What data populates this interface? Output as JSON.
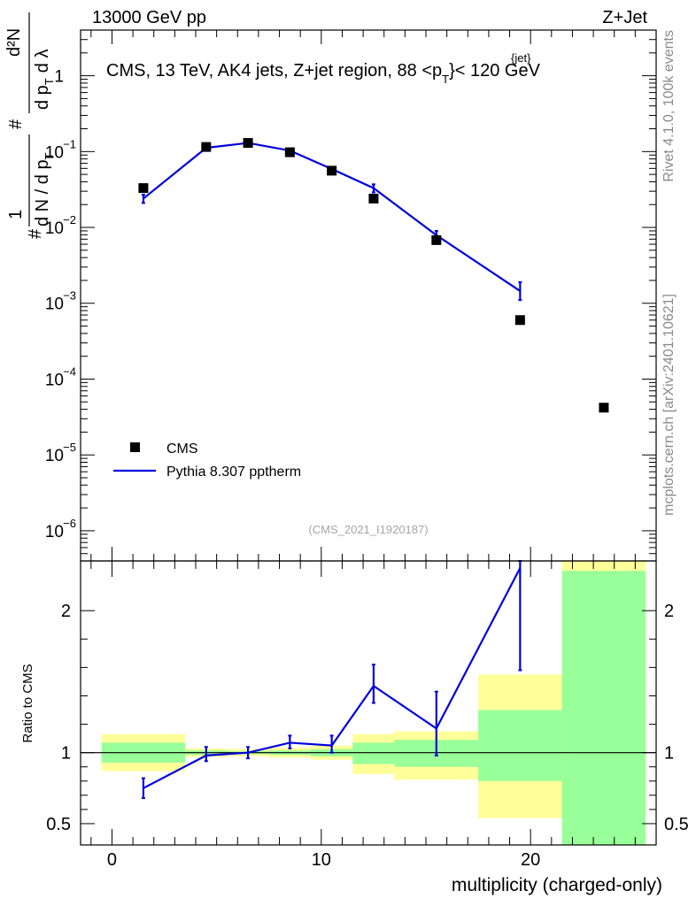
{
  "header": {
    "left": "13000 GeV pp",
    "right": "Z+Jet"
  },
  "side_labels": {
    "top": "Rivet 4.1.0,  100k events",
    "bottom": "mcplots.cern.ch [arXiv:2401.10621]"
  },
  "chart_data": [
    {
      "type": "line",
      "panel": "main",
      "title": "CMS, 13 TeV, AK4 jets, Z+jet region, 88 <p_T^{jet}< 120 GeV",
      "title_parts": {
        "prefix": "CMS, 13 TeV, AK4 jets, Z+jet region, 88 <p",
        "sup": "{jet}",
        "sub": "T",
        "suffix": "}< 120 GeV"
      },
      "ylabel": "1 / (dN/dpT) · d²N/(dpT dλ)",
      "ylabel_parts": {
        "hash": "#",
        "one": "1",
        "dN": "d N / d p",
        "T": "T",
        "d2N": "d²N",
        "dpdl": "d p",
        "lambda": "d λ"
      },
      "yscale": "log",
      "ylim": [
        4e-07,
        4
      ],
      "xlim": [
        -1.5,
        26
      ],
      "yticks": [
        {
          "value": 1,
          "base": "1",
          "exp": ""
        },
        {
          "value": 0.1,
          "base": "10",
          "exp": "−1"
        },
        {
          "value": 0.01,
          "base": "10",
          "exp": "−2"
        },
        {
          "value": 0.001,
          "base": "10",
          "exp": "−3"
        },
        {
          "value": 0.0001,
          "base": "10",
          "exp": "−4"
        },
        {
          "value": 1e-05,
          "base": "10",
          "exp": "−5"
        },
        {
          "value": 1e-06,
          "base": "10",
          "exp": "−6"
        }
      ],
      "series": [
        {
          "name": "CMS",
          "style": "markers",
          "color": "#000000",
          "x": [
            1.5,
            4.5,
            6.5,
            8.5,
            10.5,
            12.5,
            15.5,
            19.5,
            23.5
          ],
          "values": [
            0.033,
            0.115,
            0.13,
            0.098,
            0.056,
            0.024,
            0.0068,
            0.0006,
            4.2e-05
          ]
        },
        {
          "name": "Pythia 8.307 pptherm",
          "style": "line",
          "color": "#0000dd",
          "x": [
            1.5,
            4.5,
            6.5,
            8.5,
            10.5,
            12.5,
            15.5,
            19.5
          ],
          "values": [
            0.024,
            0.112,
            0.13,
            0.103,
            0.059,
            0.033,
            0.0079,
            0.00145
          ],
          "err_low": [
            0.021,
            0.107,
            0.125,
            0.098,
            0.055,
            0.029,
            0.0068,
            0.0011
          ],
          "err_high": [
            0.027,
            0.117,
            0.135,
            0.108,
            0.063,
            0.037,
            0.009,
            0.0019
          ]
        }
      ],
      "legend": {
        "placement": "bottom-left",
        "entries": [
          "CMS",
          "Pythia 8.307 pptherm"
        ]
      },
      "annotation": "(CMS_2021_I1920187)"
    },
    {
      "type": "line",
      "panel": "ratio",
      "ylabel": "Ratio to CMS",
      "xlabel": "multiplicity (charged-only)",
      "ylim": [
        0.35,
        2.35
      ],
      "xlim": [
        -1.5,
        26
      ],
      "yticks": [
        0.5,
        1,
        2
      ],
      "ytick_labels": [
        "0.5",
        "1",
        "2"
      ],
      "xticks": [
        0,
        10,
        20
      ],
      "xtick_labels": [
        "0",
        "10",
        "20"
      ],
      "reference_line": 1,
      "bands": [
        {
          "x_low": -0.5,
          "x_high": 3.5,
          "yellow": [
            0.87,
            1.13
          ],
          "green": [
            0.93,
            1.07
          ]
        },
        {
          "x_low": 3.5,
          "x_high": 5.5,
          "yellow": [
            0.97,
            1.03
          ],
          "green": [
            0.985,
            1.015
          ]
        },
        {
          "x_low": 5.5,
          "x_high": 7.5,
          "yellow": [
            0.975,
            1.025
          ],
          "green": [
            0.99,
            1.01
          ]
        },
        {
          "x_low": 7.5,
          "x_high": 9.5,
          "yellow": [
            0.965,
            1.035
          ],
          "green": [
            0.985,
            1.015
          ]
        },
        {
          "x_low": 9.5,
          "x_high": 11.5,
          "yellow": [
            0.95,
            1.05
          ],
          "green": [
            0.975,
            1.025
          ]
        },
        {
          "x_low": 11.5,
          "x_high": 13.5,
          "yellow": [
            0.85,
            1.13
          ],
          "green": [
            0.92,
            1.07
          ]
        },
        {
          "x_low": 13.5,
          "x_high": 17.5,
          "yellow": [
            0.81,
            1.15
          ],
          "green": [
            0.9,
            1.09
          ]
        },
        {
          "x_low": 17.5,
          "x_high": 21.5,
          "yellow": [
            0.54,
            1.55
          ],
          "green": [
            0.8,
            1.3
          ]
        },
        {
          "x_low": 21.5,
          "x_high": 25.5,
          "yellow": [
            0.35,
            2.35
          ],
          "green": [
            0.35,
            2.28
          ]
        }
      ],
      "series": [
        {
          "name": "Pythia 8.307 pptherm / CMS",
          "color": "#0000dd",
          "x": [
            1.5,
            4.5,
            6.5,
            8.5,
            10.5,
            12.5,
            15.5,
            19.5
          ],
          "values": [
            0.75,
            0.98,
            1.0,
            1.07,
            1.05,
            1.47,
            1.17,
            2.3
          ],
          "err_low": [
            0.68,
            0.94,
            0.96,
            1.03,
            1.0,
            1.35,
            0.98,
            1.58
          ],
          "err_high": [
            0.82,
            1.04,
            1.04,
            1.12,
            1.12,
            1.62,
            1.43,
            2.35
          ]
        }
      ]
    }
  ]
}
